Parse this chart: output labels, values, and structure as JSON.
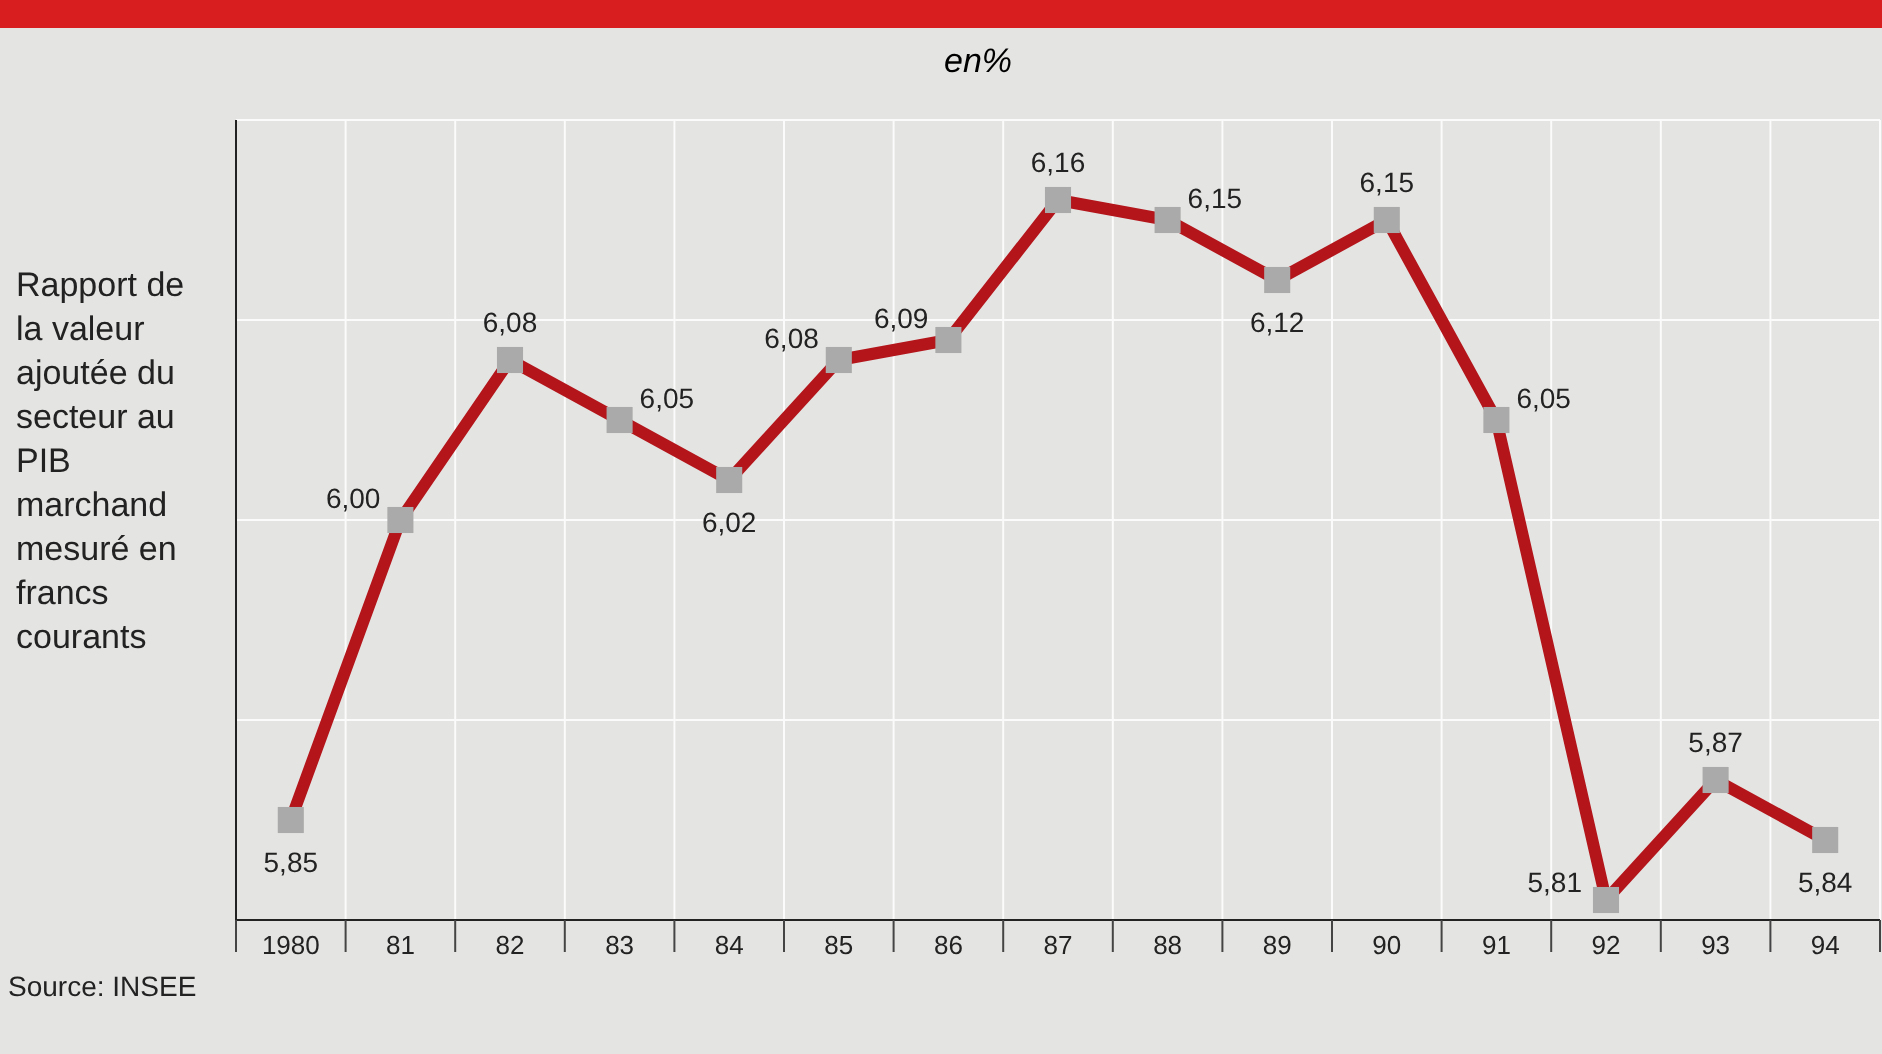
{
  "chart_data": {
    "type": "line",
    "subtitle": "en%",
    "ylabel": "Rapport de la valeur ajoutée du secteur au PIB marchand mesuré en francs courants",
    "categories": [
      "1980",
      "81",
      "82",
      "83",
      "84",
      "85",
      "86",
      "87",
      "88",
      "89",
      "90",
      "91",
      "92",
      "93",
      "94"
    ],
    "series": [
      {
        "color": "#b3151b",
        "values": [
          5.85,
          6.0,
          6.08,
          6.05,
          6.02,
          6.08,
          6.09,
          6.16,
          6.15,
          6.12,
          6.15,
          6.05,
          5.81,
          5.87,
          5.84
        ],
        "value_labels": [
          "5,85",
          "6,00",
          "6,08",
          "6,05",
          "6,02",
          "6,08",
          "6,09",
          "6,16",
          "6,15",
          "6,12",
          "6,15",
          "6,05",
          "5,81",
          "5,87",
          "5,84"
        ]
      }
    ],
    "ylim": [
      5.8,
      6.2
    ],
    "yticks": [
      {
        "value": 5.9,
        "label": null
      },
      {
        "value": 6.0,
        "label": null
      },
      {
        "value": 6.1,
        "label": null
      },
      {
        "value": 6.2,
        "label": null
      }
    ],
    "tick_labels": "x",
    "grid": true,
    "marker": "square",
    "line_style": "solid",
    "annotations": [
      "Source: INSEE"
    ]
  }
}
